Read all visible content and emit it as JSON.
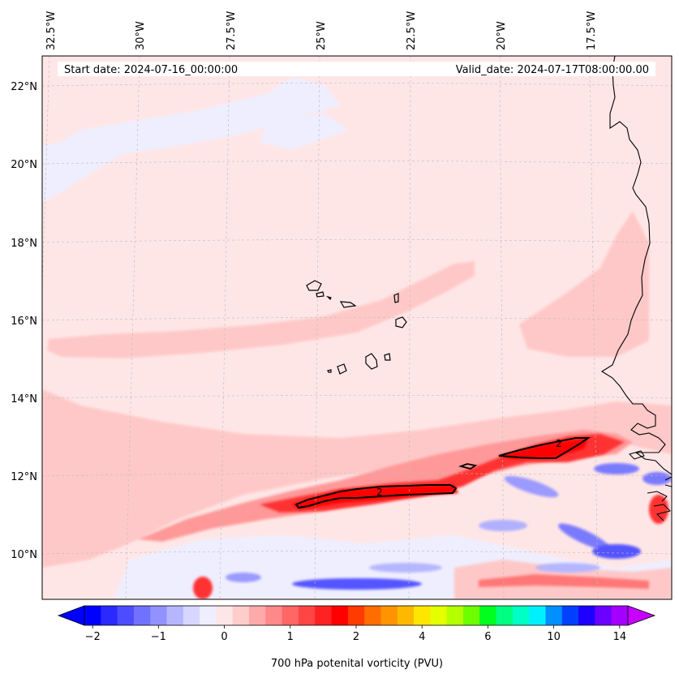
{
  "header": {
    "start_label": "Start date: 2024-07-16_00:00:00",
    "valid_label": "Valid_date: 2024-07-17T08:00:00.00"
  },
  "map": {
    "lon_ticks": [
      "32.5°W",
      "30°W",
      "27.5°W",
      "25°W",
      "22.5°W",
      "20°W",
      "17.5°W"
    ],
    "lat_ticks": [
      "22°N",
      "20°N",
      "18°N",
      "16°N",
      "14°N",
      "12°N",
      "10°N"
    ],
    "contour_label": "2",
    "colors": {
      "background": "#ffe6e6",
      "light_blue": "#eeeeff",
      "pink": "#ffc8c8",
      "salmon": "#ff9999",
      "red": "#ff3030",
      "dark_red": "#ff0000",
      "blue": "#7a7aff",
      "deep_blue": "#3333ff"
    }
  },
  "colorbar": {
    "label": "700 hPa potenital vorticity (PVU)",
    "tick_labels": [
      "−2",
      "−1",
      "0",
      "1",
      "2",
      "4",
      "6",
      "10",
      "14"
    ],
    "colors": [
      "#0000ff",
      "#2a2aff",
      "#4d4dff",
      "#7171ff",
      "#9292ff",
      "#b6b6ff",
      "#d6d6ff",
      "#eeeeff",
      "#ffe6e6",
      "#ffcccc",
      "#ffaaaa",
      "#ff8888",
      "#ff6666",
      "#ff4444",
      "#ff2222",
      "#ff0000",
      "#ff3b00",
      "#ff6d00",
      "#ff9400",
      "#ffb800",
      "#ffe600",
      "#e5ff00",
      "#b4ff00",
      "#6cff00",
      "#00ff1e",
      "#00ff80",
      "#00ffc4",
      "#00f0ff",
      "#0090ff",
      "#0040ff",
      "#1d00ff",
      "#6b00ff",
      "#a400ff"
    ],
    "under_color": "#0000ff",
    "over_color": "#c800ff"
  }
}
